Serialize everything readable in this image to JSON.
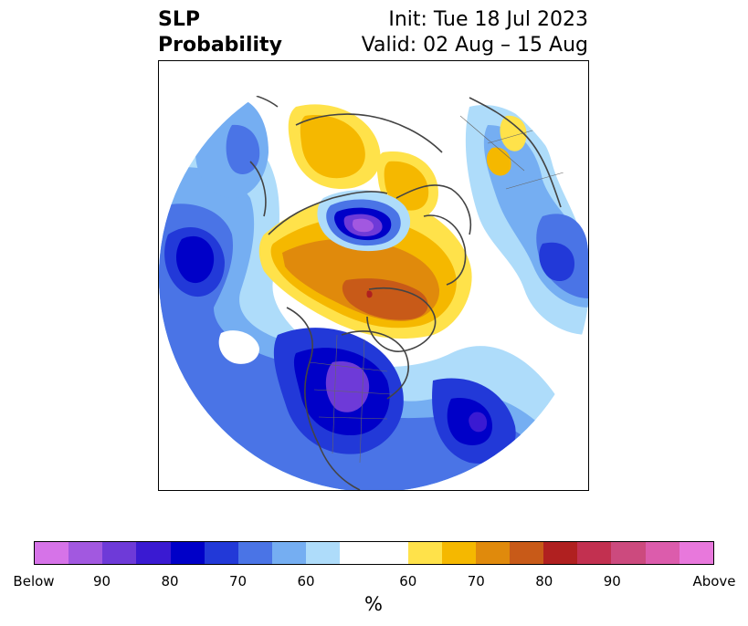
{
  "title": {
    "left_line1": "SLP",
    "left_line2": "Probability",
    "right_line1": "Init: Tue 18 Jul 2023",
    "right_line2": "Valid: 02 Aug – 15 Aug"
  },
  "colorbar": {
    "below_colors": [
      "#d673e8",
      "#a258e0",
      "#6e3ad8",
      "#3a1ad2",
      "#0000c8",
      "#2239d8",
      "#4a74e6",
      "#75aef2",
      "#aedcfa"
    ],
    "above_colors": [
      "#ffe24a",
      "#f5b800",
      "#e08a0c",
      "#c85a18",
      "#b02020",
      "#c23050",
      "#cc4a7e",
      "#dc5cac",
      "#e878dc"
    ],
    "ticks": [
      {
        "label": "Below"
      },
      {
        "label": "90"
      },
      {
        "label": "80"
      },
      {
        "label": "70"
      },
      {
        "label": "60"
      },
      {
        "label": "60"
      },
      {
        "label": "70"
      },
      {
        "label": "80"
      },
      {
        "label": "90"
      },
      {
        "label": "Above"
      }
    ],
    "unit": "%"
  }
}
